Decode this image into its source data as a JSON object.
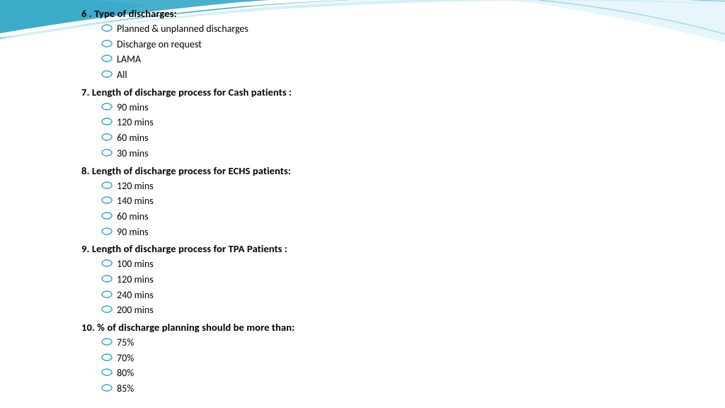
{
  "slide": {
    "background_color": "#ffffff",
    "wave": {
      "fill_primary": "#2ea6c6",
      "fill_light": "#b6e4f0",
      "stroke_white": "#ffffff"
    },
    "bullet": {
      "stroke": "#2ea6c6",
      "fill": "#ffffff",
      "rx": 7,
      "ry": 4.5,
      "stroke_width": 1.4
    },
    "text_color": "#000000",
    "question_fontsize": 14.5,
    "option_fontsize": 14,
    "questions": [
      {
        "number": "6 .",
        "text": "Type of discharges:",
        "options": [
          "Planned & unplanned discharges",
          " Discharge on request",
          "LAMA",
          " All"
        ]
      },
      {
        "number": "7.",
        "text": "  Length of discharge process for Cash patients :",
        "options": [
          "90 mins",
          "120 mins",
          "60 mins",
          "30 mins"
        ]
      },
      {
        "number": "8.",
        "text": " Length of discharge process for ECHS patients:",
        "options": [
          " 120 mins",
          "140 mins",
          "60 mins",
          "90 mins"
        ]
      },
      {
        "number": "9.",
        "text": " Length of discharge process for TPA Patients :",
        "options": [
          " 100 mins",
          "120 mins",
          "240 mins",
          "200 mins"
        ]
      },
      {
        "number": "10.",
        "text": " % of discharge planning should be more than:",
        "options": [
          " 75%",
          "70%",
          "80%",
          " 85%"
        ]
      }
    ]
  }
}
